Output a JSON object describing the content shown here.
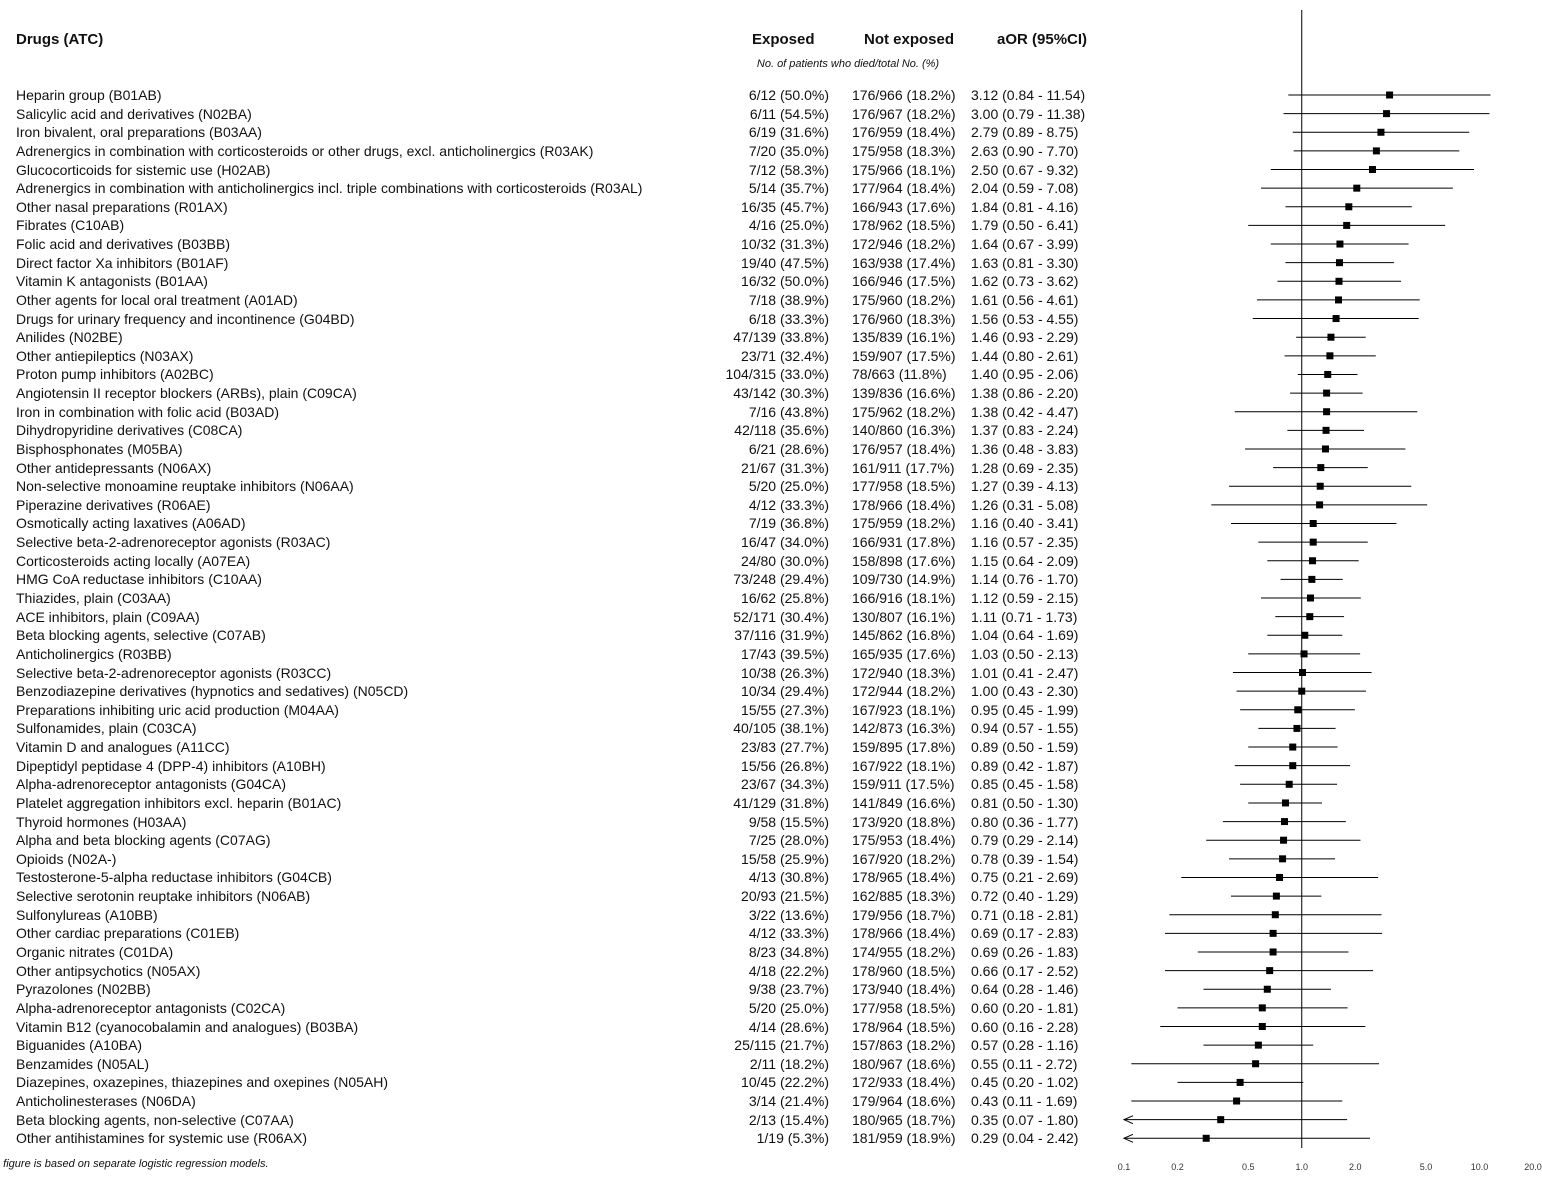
{
  "headers": {
    "drug": "Drugs (ATC)",
    "exposed": "Exposed",
    "not_exposed": "Not exposed",
    "aor": "aOR (95%CI)",
    "sub": "No. of patients who died/total No. (%)"
  },
  "footnotes": [
    "e figure is based on separate logistic regression models."
  ],
  "chart_data": {
    "type": "forest",
    "xscale": "log",
    "xticks": [
      "0.1",
      "0.2",
      "0.5",
      "1.0",
      "2.0",
      "5.0",
      "10.0",
      "20.0"
    ],
    "reference_line": 1.0,
    "rows": [
      {
        "drug": "Heparin group (B01AB)",
        "exposed": "6/12 (50.0%)",
        "not_exposed": "176/966 (18.2%)",
        "aor_text": "3.12 (0.84 - 11.54)",
        "or": 3.12,
        "lo": 0.84,
        "hi": 11.54
      },
      {
        "drug": "Salicylic acid and derivatives (N02BA)",
        "exposed": "6/11 (54.5%)",
        "not_exposed": "176/967 (18.2%)",
        "aor_text": "3.00 (0.79 - 11.38)",
        "or": 3.0,
        "lo": 0.79,
        "hi": 11.38
      },
      {
        "drug": "Iron bivalent, oral preparations (B03AA)",
        "exposed": "6/19 (31.6%)",
        "not_exposed": "176/959 (18.4%)",
        "aor_text": "2.79 (0.89 - 8.75)",
        "or": 2.79,
        "lo": 0.89,
        "hi": 8.75
      },
      {
        "drug": "Adrenergics in combination with corticosteroids or other drugs, excl. anticholinergics (R03AK)",
        "exposed": "7/20 (35.0%)",
        "not_exposed": "175/958 (18.3%)",
        "aor_text": "2.63 (0.90 - 7.70)",
        "or": 2.63,
        "lo": 0.9,
        "hi": 7.7
      },
      {
        "drug": "Glucocorticoids for sistemic use (H02AB)",
        "exposed": "7/12 (58.3%)",
        "not_exposed": "175/966 (18.1%)",
        "aor_text": "2.50 (0.67 - 9.32)",
        "or": 2.5,
        "lo": 0.67,
        "hi": 9.32
      },
      {
        "drug": "Adrenergics in combination with anticholinergics incl. triple combinations with corticosteroids (R03AL)",
        "exposed": "5/14 (35.7%)",
        "not_exposed": "177/964 (18.4%)",
        "aor_text": "2.04 (0.59 - 7.08)",
        "or": 2.04,
        "lo": 0.59,
        "hi": 7.08
      },
      {
        "drug": "Other nasal preparations (R01AX)",
        "exposed": "16/35 (45.7%)",
        "not_exposed": "166/943 (17.6%)",
        "aor_text": "1.84 (0.81 - 4.16)",
        "or": 1.84,
        "lo": 0.81,
        "hi": 4.16
      },
      {
        "drug": "Fibrates (C10AB)",
        "exposed": "4/16 (25.0%)",
        "not_exposed": "178/962 (18.5%)",
        "aor_text": "1.79 (0.50 - 6.41)",
        "or": 1.79,
        "lo": 0.5,
        "hi": 6.41
      },
      {
        "drug": "Folic acid and derivatives (B03BB)",
        "exposed": "10/32 (31.3%)",
        "not_exposed": "172/946 (18.2%)",
        "aor_text": "1.64 (0.67 - 3.99)",
        "or": 1.64,
        "lo": 0.67,
        "hi": 3.99
      },
      {
        "drug": "Direct factor Xa inhibitors (B01AF)",
        "exposed": "19/40 (47.5%)",
        "not_exposed": "163/938 (17.4%)",
        "aor_text": "1.63 (0.81 - 3.30)",
        "or": 1.63,
        "lo": 0.81,
        "hi": 3.3
      },
      {
        "drug": "Vitamin K antagonists (B01AA)",
        "exposed": "16/32 (50.0%)",
        "not_exposed": "166/946 (17.5%)",
        "aor_text": "1.62 (0.73 - 3.62)",
        "or": 1.62,
        "lo": 0.73,
        "hi": 3.62
      },
      {
        "drug": "Other agents for local oral treatment (A01AD)",
        "exposed": "7/18 (38.9%)",
        "not_exposed": "175/960 (18.2%)",
        "aor_text": "1.61 (0.56 - 4.61)",
        "or": 1.61,
        "lo": 0.56,
        "hi": 4.61
      },
      {
        "drug": "Drugs for urinary frequency and incontinence (G04BD)",
        "exposed": "6/18 (33.3%)",
        "not_exposed": "176/960 (18.3%)",
        "aor_text": "1.56 (0.53 - 4.55)",
        "or": 1.56,
        "lo": 0.53,
        "hi": 4.55
      },
      {
        "drug": "Anilides (N02BE)",
        "exposed": "47/139 (33.8%)",
        "not_exposed": "135/839 (16.1%)",
        "aor_text": "1.46 (0.93 - 2.29)",
        "or": 1.46,
        "lo": 0.93,
        "hi": 2.29
      },
      {
        "drug": "Other antiepileptics (N03AX)",
        "exposed": "23/71 (32.4%)",
        "not_exposed": "159/907 (17.5%)",
        "aor_text": "1.44 (0.80 - 2.61)",
        "or": 1.44,
        "lo": 0.8,
        "hi": 2.61
      },
      {
        "drug": "Proton pump inhibitors (A02BC)",
        "exposed": "104/315 (33.0%)",
        "not_exposed": "78/663 (11.8%)",
        "aor_text": "1.40 (0.95 - 2.06)",
        "or": 1.4,
        "lo": 0.95,
        "hi": 2.06
      },
      {
        "drug": "Angiotensin II receptor blockers (ARBs), plain (C09CA)",
        "exposed": "43/142 (30.3%)",
        "not_exposed": "139/836 (16.6%)",
        "aor_text": "1.38 (0.86 - 2.20)",
        "or": 1.38,
        "lo": 0.86,
        "hi": 2.2
      },
      {
        "drug": "Iron in combination with folic acid (B03AD)",
        "exposed": "7/16 (43.8%)",
        "not_exposed": "175/962 (18.2%)",
        "aor_text": "1.38 (0.42 - 4.47)",
        "or": 1.38,
        "lo": 0.42,
        "hi": 4.47
      },
      {
        "drug": "Dihydropyridine derivatives (C08CA)",
        "exposed": "42/118 (35.6%)",
        "not_exposed": "140/860 (16.3%)",
        "aor_text": "1.37 (0.83 - 2.24)",
        "or": 1.37,
        "lo": 0.83,
        "hi": 2.24
      },
      {
        "drug": "Bisphosphonates (M05BA)",
        "exposed": "6/21 (28.6%)",
        "not_exposed": "176/957 (18.4%)",
        "aor_text": "1.36 (0.48 - 3.83)",
        "or": 1.36,
        "lo": 0.48,
        "hi": 3.83
      },
      {
        "drug": "Other antidepressants (N06AX)",
        "exposed": "21/67 (31.3%)",
        "not_exposed": "161/911 (17.7%)",
        "aor_text": "1.28 (0.69 - 2.35)",
        "or": 1.28,
        "lo": 0.69,
        "hi": 2.35
      },
      {
        "drug": "Non-selective monoamine reuptake inhibitors (N06AA)",
        "exposed": "5/20 (25.0%)",
        "not_exposed": "177/958 (18.5%)",
        "aor_text": "1.27 (0.39 - 4.13)",
        "or": 1.27,
        "lo": 0.39,
        "hi": 4.13
      },
      {
        "drug": "Piperazine derivatives (R06AE)",
        "exposed": "4/12 (33.3%)",
        "not_exposed": "178/966 (18.4%)",
        "aor_text": "1.26 (0.31 - 5.08)",
        "or": 1.26,
        "lo": 0.31,
        "hi": 5.08
      },
      {
        "drug": "Osmotically acting laxatives (A06AD)",
        "exposed": "7/19 (36.8%)",
        "not_exposed": "175/959 (18.2%)",
        "aor_text": "1.16 (0.40 - 3.41)",
        "or": 1.16,
        "lo": 0.4,
        "hi": 3.41
      },
      {
        "drug": "Selective beta-2-adrenoreceptor agonists (R03AC)",
        "exposed": "16/47 (34.0%)",
        "not_exposed": "166/931 (17.8%)",
        "aor_text": "1.16 (0.57 - 2.35)",
        "or": 1.16,
        "lo": 0.57,
        "hi": 2.35
      },
      {
        "drug": "Corticosteroids acting locally (A07EA)",
        "exposed": "24/80 (30.0%)",
        "not_exposed": "158/898 (17.6%)",
        "aor_text": "1.15 (0.64 - 2.09)",
        "or": 1.15,
        "lo": 0.64,
        "hi": 2.09
      },
      {
        "drug": "HMG CoA reductase inhibitors (C10AA)",
        "exposed": "73/248 (29.4%)",
        "not_exposed": "109/730 (14.9%)",
        "aor_text": "1.14 (0.76 - 1.70)",
        "or": 1.14,
        "lo": 0.76,
        "hi": 1.7
      },
      {
        "drug": "Thiazides, plain (C03AA)",
        "exposed": "16/62 (25.8%)",
        "not_exposed": "166/916 (18.1%)",
        "aor_text": "1.12 (0.59 - 2.15)",
        "or": 1.12,
        "lo": 0.59,
        "hi": 2.15
      },
      {
        "drug": "ACE inhibitors, plain (C09AA)",
        "exposed": "52/171 (30.4%)",
        "not_exposed": "130/807 (16.1%)",
        "aor_text": "1.11 (0.71 - 1.73)",
        "or": 1.11,
        "lo": 0.71,
        "hi": 1.73
      },
      {
        "drug": "Beta blocking agents, selective (C07AB)",
        "exposed": "37/116 (31.9%)",
        "not_exposed": "145/862 (16.8%)",
        "aor_text": "1.04 (0.64 - 1.69)",
        "or": 1.04,
        "lo": 0.64,
        "hi": 1.69
      },
      {
        "drug": "Anticholinergics (R03BB)",
        "exposed": "17/43 (39.5%)",
        "not_exposed": "165/935 (17.6%)",
        "aor_text": "1.03 (0.50 - 2.13)",
        "or": 1.03,
        "lo": 0.5,
        "hi": 2.13
      },
      {
        "drug": "Selective beta-2-adrenoreceptor agonists (R03CC)",
        "exposed": "10/38 (26.3%)",
        "not_exposed": "172/940 (18.3%)",
        "aor_text": "1.01 (0.41 - 2.47)",
        "or": 1.01,
        "lo": 0.41,
        "hi": 2.47
      },
      {
        "drug": "Benzodiazepine derivatives (hypnotics and sedatives) (N05CD)",
        "exposed": "10/34 (29.4%)",
        "not_exposed": "172/944 (18.2%)",
        "aor_text": "1.00 (0.43 - 2.30)",
        "or": 1.0,
        "lo": 0.43,
        "hi": 2.3
      },
      {
        "drug": "Preparations inhibiting uric acid production (M04AA)",
        "exposed": "15/55 (27.3%)",
        "not_exposed": "167/923 (18.1%)",
        "aor_text": "0.95 (0.45 - 1.99)",
        "or": 0.95,
        "lo": 0.45,
        "hi": 1.99
      },
      {
        "drug": "Sulfonamides, plain (C03CA)",
        "exposed": "40/105 (38.1%)",
        "not_exposed": "142/873 (16.3%)",
        "aor_text": "0.94 (0.57 - 1.55)",
        "or": 0.94,
        "lo": 0.57,
        "hi": 1.55
      },
      {
        "drug": "Vitamin D and analogues (A11CC)",
        "exposed": "23/83 (27.7%)",
        "not_exposed": "159/895 (17.8%)",
        "aor_text": "0.89 (0.50 - 1.59)",
        "or": 0.89,
        "lo": 0.5,
        "hi": 1.59
      },
      {
        "drug": "Dipeptidyl peptidase 4 (DPP-4) inhibitors (A10BH)",
        "exposed": "15/56 (26.8%)",
        "not_exposed": "167/922 (18.1%)",
        "aor_text": "0.89 (0.42 - 1.87)",
        "or": 0.89,
        "lo": 0.42,
        "hi": 1.87
      },
      {
        "drug": "Alpha-adrenoreceptor antagonists (G04CA)",
        "exposed": "23/67 (34.3%)",
        "not_exposed": "159/911 (17.5%)",
        "aor_text": "0.85 (0.45 - 1.58)",
        "or": 0.85,
        "lo": 0.45,
        "hi": 1.58
      },
      {
        "drug": "Platelet aggregation inhibitors excl. heparin (B01AC)",
        "exposed": "41/129 (31.8%)",
        "not_exposed": "141/849 (16.6%)",
        "aor_text": "0.81 (0.50 - 1.30)",
        "or": 0.81,
        "lo": 0.5,
        "hi": 1.3
      },
      {
        "drug": "Thyroid hormones (H03AA)",
        "exposed": "9/58 (15.5%)",
        "not_exposed": "173/920 (18.8%)",
        "aor_text": "0.80 (0.36 - 1.77)",
        "or": 0.8,
        "lo": 0.36,
        "hi": 1.77
      },
      {
        "drug": "Alpha and beta blocking agents (C07AG)",
        "exposed": "7/25 (28.0%)",
        "not_exposed": "175/953 (18.4%)",
        "aor_text": "0.79 (0.29 - 2.14)",
        "or": 0.79,
        "lo": 0.29,
        "hi": 2.14
      },
      {
        "drug": "Opioids (N02A-)",
        "exposed": "15/58 (25.9%)",
        "not_exposed": "167/920 (18.2%)",
        "aor_text": "0.78 (0.39 - 1.54)",
        "or": 0.78,
        "lo": 0.39,
        "hi": 1.54
      },
      {
        "drug": "Testosterone-5-alpha reductase inhibitors (G04CB)",
        "exposed": "4/13 (30.8%)",
        "not_exposed": "178/965 (18.4%)",
        "aor_text": "0.75 (0.21 - 2.69)",
        "or": 0.75,
        "lo": 0.21,
        "hi": 2.69
      },
      {
        "drug": "Selective serotonin reuptake inhibitors (N06AB)",
        "exposed": "20/93 (21.5%)",
        "not_exposed": "162/885 (18.3%)",
        "aor_text": "0.72 (0.40 - 1.29)",
        "or": 0.72,
        "lo": 0.4,
        "hi": 1.29
      },
      {
        "drug": "Sulfonylureas (A10BB)",
        "exposed": "3/22 (13.6%)",
        "not_exposed": "179/956 (18.7%)",
        "aor_text": "0.71 (0.18 - 2.81)",
        "or": 0.71,
        "lo": 0.18,
        "hi": 2.81
      },
      {
        "drug": "Other cardiac preparations (C01EB)",
        "exposed": "4/12 (33.3%)",
        "not_exposed": "178/966 (18.4%)",
        "aor_text": "0.69 (0.17 - 2.83)",
        "or": 0.69,
        "lo": 0.17,
        "hi": 2.83
      },
      {
        "drug": "Organic nitrates (C01DA)",
        "exposed": "8/23 (34.8%)",
        "not_exposed": "174/955 (18.2%)",
        "aor_text": "0.69 (0.26 - 1.83)",
        "or": 0.69,
        "lo": 0.26,
        "hi": 1.83
      },
      {
        "drug": "Other antipsychotics (N05AX)",
        "exposed": "4/18 (22.2%)",
        "not_exposed": "178/960 (18.5%)",
        "aor_text": "0.66 (0.17 - 2.52)",
        "or": 0.66,
        "lo": 0.17,
        "hi": 2.52
      },
      {
        "drug": "Pyrazolones (N02BB)",
        "exposed": "9/38 (23.7%)",
        "not_exposed": "173/940 (18.4%)",
        "aor_text": "0.64 (0.28 - 1.46)",
        "or": 0.64,
        "lo": 0.28,
        "hi": 1.46
      },
      {
        "drug": "Alpha-adrenoreceptor antagonists (C02CA)",
        "exposed": "5/20 (25.0%)",
        "not_exposed": "177/958 (18.5%)",
        "aor_text": "0.60 (0.20 - 1.81)",
        "or": 0.6,
        "lo": 0.2,
        "hi": 1.81
      },
      {
        "drug": "Vitamin B12 (cyanocobalamin and analogues) (B03BA)",
        "exposed": "4/14 (28.6%)",
        "not_exposed": "178/964 (18.5%)",
        "aor_text": "0.60 (0.16 - 2.28)",
        "or": 0.6,
        "lo": 0.16,
        "hi": 2.28
      },
      {
        "drug": "Biguanides (A10BA)",
        "exposed": "25/115 (21.7%)",
        "not_exposed": "157/863 (18.2%)",
        "aor_text": "0.57 (0.28 - 1.16)",
        "or": 0.57,
        "lo": 0.28,
        "hi": 1.16
      },
      {
        "drug": "Benzamides (N05AL)",
        "exposed": "2/11 (18.2%)",
        "not_exposed": "180/967 (18.6%)",
        "aor_text": "0.55 (0.11 - 2.72)",
        "or": 0.55,
        "lo": 0.11,
        "hi": 2.72
      },
      {
        "drug": "Diazepines, oxazepines, thiazepines and oxepines (N05AH)",
        "exposed": "10/45 (22.2%)",
        "not_exposed": "172/933 (18.4%)",
        "aor_text": "0.45 (0.20 - 1.02)",
        "or": 0.45,
        "lo": 0.2,
        "hi": 1.02
      },
      {
        "drug": "Anticholinesterases (N06DA)",
        "exposed": "3/14 (21.4%)",
        "not_exposed": "179/964 (18.6%)",
        "aor_text": "0.43 (0.11 - 1.69)",
        "or": 0.43,
        "lo": 0.11,
        "hi": 1.69
      },
      {
        "drug": "Beta blocking agents, non-selective (C07AA)",
        "exposed": "2/13 (15.4%)",
        "not_exposed": "180/965 (18.7%)",
        "aor_text": "0.35 (0.07 - 1.80)",
        "or": 0.35,
        "lo": 0.07,
        "hi": 1.8
      },
      {
        "drug": "Other antihistamines for systemic use (R06AX)",
        "exposed": "1/19 (5.3%)",
        "not_exposed": "181/959 (18.9%)",
        "aor_text": "0.29 (0.04 - 2.42)",
        "or": 0.29,
        "lo": 0.04,
        "hi": 2.42
      }
    ]
  }
}
